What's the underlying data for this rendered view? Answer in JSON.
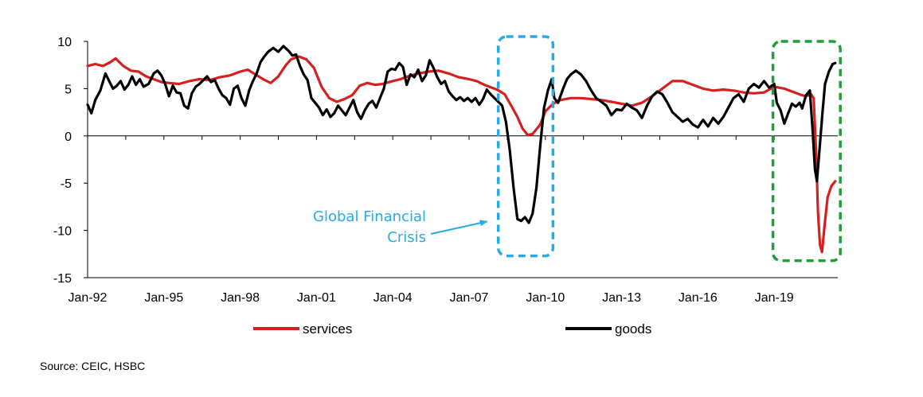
{
  "chart_data": {
    "type": "line",
    "title": "",
    "xlabel": "",
    "ylabel": "",
    "ylim": [
      -15,
      10
    ],
    "yticks": [
      10,
      5,
      0,
      -5,
      -10,
      -15
    ],
    "xrange": [
      1992.0,
      2021.5
    ],
    "xticks": [
      {
        "value": 1992,
        "label": "Jan-92"
      },
      {
        "value": 1995,
        "label": "Jan-95"
      },
      {
        "value": 1998,
        "label": "Jan-98"
      },
      {
        "value": 2001,
        "label": "Jan-01"
      },
      {
        "value": 2004,
        "label": "Jan-04"
      },
      {
        "value": 2007,
        "label": "Jan-07"
      },
      {
        "value": 2010,
        "label": "Jan-10"
      },
      {
        "value": 2013,
        "label": "Jan-13"
      },
      {
        "value": 2016,
        "label": "Jan-16"
      },
      {
        "value": 2019,
        "label": "Jan-19"
      }
    ],
    "series": [
      {
        "name": "services",
        "color": "#d62020",
        "points": [
          [
            1992.0,
            7.4
          ],
          [
            1992.3,
            7.6
          ],
          [
            1992.6,
            7.4
          ],
          [
            1992.9,
            7.8
          ],
          [
            1993.1,
            8.2
          ],
          [
            1993.4,
            7.4
          ],
          [
            1993.7,
            6.9
          ],
          [
            1994.0,
            6.8
          ],
          [
            1994.3,
            6.3
          ],
          [
            1994.6,
            6.0
          ],
          [
            1994.9,
            5.7
          ],
          [
            1995.2,
            5.6
          ],
          [
            1995.6,
            5.5
          ],
          [
            1996.0,
            5.8
          ],
          [
            1996.4,
            6.0
          ],
          [
            1996.8,
            5.9
          ],
          [
            1997.2,
            6.2
          ],
          [
            1997.6,
            6.4
          ],
          [
            1998.0,
            6.8
          ],
          [
            1998.3,
            7.0
          ],
          [
            1998.6,
            6.5
          ],
          [
            1998.9,
            6.0
          ],
          [
            1999.2,
            5.6
          ],
          [
            1999.5,
            6.3
          ],
          [
            1999.8,
            7.5
          ],
          [
            2000.0,
            8.1
          ],
          [
            2000.3,
            8.4
          ],
          [
            2000.6,
            8.1
          ],
          [
            2000.9,
            7.2
          ],
          [
            2001.2,
            5.2
          ],
          [
            2001.5,
            4.0
          ],
          [
            2001.8,
            3.6
          ],
          [
            2002.1,
            3.9
          ],
          [
            2002.4,
            4.3
          ],
          [
            2002.7,
            5.3
          ],
          [
            2003.0,
            5.6
          ],
          [
            2003.3,
            5.4
          ],
          [
            2003.6,
            5.5
          ],
          [
            2004.0,
            5.8
          ],
          [
            2004.3,
            6.0
          ],
          [
            2004.6,
            6.3
          ],
          [
            2005.0,
            6.6
          ],
          [
            2005.4,
            6.8
          ],
          [
            2005.8,
            6.9
          ],
          [
            2006.2,
            6.6
          ],
          [
            2006.6,
            6.2
          ],
          [
            2007.0,
            6.0
          ],
          [
            2007.3,
            5.8
          ],
          [
            2007.6,
            5.4
          ],
          [
            2007.9,
            5.1
          ],
          [
            2008.1,
            4.9
          ],
          [
            2008.4,
            4.4
          ],
          [
            2008.7,
            3.0
          ],
          [
            2008.9,
            2.0
          ],
          [
            2009.1,
            0.8
          ],
          [
            2009.3,
            0.1
          ],
          [
            2009.5,
            0.2
          ],
          [
            2009.8,
            1.2
          ],
          [
            2010.0,
            2.6
          ],
          [
            2010.3,
            3.4
          ],
          [
            2010.6,
            3.8
          ],
          [
            2011.0,
            4.0
          ],
          [
            2011.4,
            4.0
          ],
          [
            2011.8,
            3.9
          ],
          [
            2012.2,
            3.8
          ],
          [
            2012.6,
            3.6
          ],
          [
            2013.0,
            3.4
          ],
          [
            2013.4,
            3.2
          ],
          [
            2013.8,
            3.5
          ],
          [
            2014.2,
            4.2
          ],
          [
            2014.6,
            5.0
          ],
          [
            2015.0,
            5.8
          ],
          [
            2015.4,
            5.8
          ],
          [
            2015.8,
            5.4
          ],
          [
            2016.2,
            5.0
          ],
          [
            2016.6,
            4.8
          ],
          [
            2017.0,
            4.9
          ],
          [
            2017.4,
            4.8
          ],
          [
            2017.8,
            4.6
          ],
          [
            2018.2,
            4.5
          ],
          [
            2018.6,
            4.6
          ],
          [
            2019.0,
            5.2
          ],
          [
            2019.4,
            5.0
          ],
          [
            2019.8,
            4.6
          ],
          [
            2020.1,
            4.3
          ],
          [
            2020.25,
            4.2
          ],
          [
            2020.45,
            4.4
          ],
          [
            2020.55,
            4.0
          ],
          [
            2020.65,
            -2.0
          ],
          [
            2020.72,
            -8.0
          ],
          [
            2020.8,
            -11.5
          ],
          [
            2020.88,
            -12.3
          ],
          [
            2020.98,
            -9.5
          ],
          [
            2021.1,
            -6.5
          ],
          [
            2021.25,
            -5.3
          ],
          [
            2021.4,
            -4.8
          ]
        ]
      },
      {
        "name": "goods",
        "color": "#000000",
        "points": [
          [
            1992.0,
            3.3
          ],
          [
            1992.15,
            2.4
          ],
          [
            1992.3,
            3.8
          ],
          [
            1992.5,
            4.8
          ],
          [
            1992.7,
            6.6
          ],
          [
            1992.85,
            5.8
          ],
          [
            1993.0,
            5.0
          ],
          [
            1993.15,
            5.3
          ],
          [
            1993.3,
            5.8
          ],
          [
            1993.45,
            4.9
          ],
          [
            1993.6,
            5.4
          ],
          [
            1993.75,
            6.3
          ],
          [
            1993.9,
            5.4
          ],
          [
            1994.05,
            6.0
          ],
          [
            1994.2,
            5.2
          ],
          [
            1994.4,
            5.5
          ],
          [
            1994.6,
            6.6
          ],
          [
            1994.75,
            6.9
          ],
          [
            1994.9,
            6.4
          ],
          [
            1995.05,
            5.5
          ],
          [
            1995.2,
            4.2
          ],
          [
            1995.35,
            5.3
          ],
          [
            1995.5,
            4.6
          ],
          [
            1995.65,
            4.5
          ],
          [
            1995.8,
            3.2
          ],
          [
            1995.95,
            2.9
          ],
          [
            1996.1,
            4.5
          ],
          [
            1996.25,
            5.2
          ],
          [
            1996.4,
            5.5
          ],
          [
            1996.55,
            5.9
          ],
          [
            1996.7,
            6.3
          ],
          [
            1996.85,
            5.7
          ],
          [
            1997.0,
            5.9
          ],
          [
            1997.15,
            5.0
          ],
          [
            1997.3,
            4.3
          ],
          [
            1997.45,
            4.0
          ],
          [
            1997.6,
            3.3
          ],
          [
            1997.75,
            5.0
          ],
          [
            1997.9,
            5.3
          ],
          [
            1998.05,
            4.0
          ],
          [
            1998.2,
            3.2
          ],
          [
            1998.35,
            4.8
          ],
          [
            1998.5,
            5.8
          ],
          [
            1998.65,
            6.6
          ],
          [
            1998.8,
            7.8
          ],
          [
            1998.95,
            8.4
          ],
          [
            1999.1,
            8.9
          ],
          [
            1999.3,
            9.3
          ],
          [
            1999.5,
            8.9
          ],
          [
            1999.7,
            9.5
          ],
          [
            1999.9,
            9.0
          ],
          [
            2000.05,
            8.5
          ],
          [
            2000.2,
            8.6
          ],
          [
            2000.35,
            7.4
          ],
          [
            2000.5,
            6.5
          ],
          [
            2000.65,
            5.9
          ],
          [
            2000.8,
            4.0
          ],
          [
            2000.95,
            3.5
          ],
          [
            2001.1,
            3.0
          ],
          [
            2001.25,
            2.2
          ],
          [
            2001.4,
            2.8
          ],
          [
            2001.55,
            2.0
          ],
          [
            2001.7,
            2.4
          ],
          [
            2001.85,
            3.2
          ],
          [
            2002.0,
            2.7
          ],
          [
            2002.15,
            2.2
          ],
          [
            2002.3,
            3.0
          ],
          [
            2002.45,
            3.8
          ],
          [
            2002.6,
            2.5
          ],
          [
            2002.75,
            1.8
          ],
          [
            2002.9,
            2.7
          ],
          [
            2003.05,
            3.4
          ],
          [
            2003.2,
            3.7
          ],
          [
            2003.35,
            3.0
          ],
          [
            2003.5,
            4.0
          ],
          [
            2003.65,
            5.0
          ],
          [
            2003.8,
            6.8
          ],
          [
            2003.95,
            7.1
          ],
          [
            2004.1,
            7.0
          ],
          [
            2004.25,
            7.7
          ],
          [
            2004.4,
            7.3
          ],
          [
            2004.55,
            5.4
          ],
          [
            2004.7,
            6.5
          ],
          [
            2004.85,
            6.2
          ],
          [
            2005.0,
            7.0
          ],
          [
            2005.15,
            5.8
          ],
          [
            2005.3,
            6.4
          ],
          [
            2005.45,
            8.0
          ],
          [
            2005.6,
            7.2
          ],
          [
            2005.75,
            6.2
          ],
          [
            2005.9,
            5.5
          ],
          [
            2006.05,
            5.8
          ],
          [
            2006.2,
            4.7
          ],
          [
            2006.35,
            4.2
          ],
          [
            2006.5,
            3.8
          ],
          [
            2006.65,
            4.1
          ],
          [
            2006.8,
            3.7
          ],
          [
            2006.95,
            4.0
          ],
          [
            2007.1,
            3.6
          ],
          [
            2007.25,
            4.0
          ],
          [
            2007.4,
            3.3
          ],
          [
            2007.55,
            3.9
          ],
          [
            2007.7,
            4.9
          ],
          [
            2007.85,
            4.4
          ],
          [
            2008.0,
            4.0
          ],
          [
            2008.15,
            3.6
          ],
          [
            2008.3,
            3.2
          ],
          [
            2008.45,
            1.5
          ],
          [
            2008.6,
            -1.5
          ],
          [
            2008.75,
            -5.5
          ],
          [
            2008.9,
            -8.8
          ],
          [
            2009.05,
            -9.0
          ],
          [
            2009.2,
            -8.6
          ],
          [
            2009.35,
            -9.2
          ],
          [
            2009.5,
            -8.2
          ],
          [
            2009.65,
            -5.5
          ],
          [
            2009.8,
            -1.0
          ],
          [
            2009.95,
            3.0
          ],
          [
            2010.1,
            4.8
          ],
          [
            2010.25,
            6.0
          ],
          [
            2010.35,
            4.0
          ],
          [
            2010.5,
            3.5
          ],
          [
            2010.7,
            5.0
          ],
          [
            2010.85,
            6.0
          ],
          [
            2011.0,
            6.5
          ],
          [
            2011.2,
            6.9
          ],
          [
            2011.4,
            6.5
          ],
          [
            2011.6,
            5.8
          ],
          [
            2011.8,
            4.8
          ],
          [
            2012.0,
            4.0
          ],
          [
            2012.2,
            3.6
          ],
          [
            2012.4,
            3.2
          ],
          [
            2012.6,
            2.2
          ],
          [
            2012.8,
            2.8
          ],
          [
            2013.0,
            2.7
          ],
          [
            2013.2,
            3.4
          ],
          [
            2013.4,
            3.0
          ],
          [
            2013.6,
            2.7
          ],
          [
            2013.8,
            1.9
          ],
          [
            2014.0,
            3.2
          ],
          [
            2014.2,
            4.2
          ],
          [
            2014.4,
            4.7
          ],
          [
            2014.6,
            4.4
          ],
          [
            2014.8,
            3.5
          ],
          [
            2015.0,
            2.5
          ],
          [
            2015.2,
            2.0
          ],
          [
            2015.4,
            1.5
          ],
          [
            2015.6,
            1.8
          ],
          [
            2015.8,
            1.2
          ],
          [
            2016.0,
            0.9
          ],
          [
            2016.2,
            1.7
          ],
          [
            2016.4,
            1.0
          ],
          [
            2016.6,
            1.9
          ],
          [
            2016.8,
            1.3
          ],
          [
            2017.0,
            2.0
          ],
          [
            2017.2,
            3.0
          ],
          [
            2017.4,
            4.0
          ],
          [
            2017.6,
            4.4
          ],
          [
            2017.8,
            3.6
          ],
          [
            2018.0,
            5.0
          ],
          [
            2018.2,
            5.5
          ],
          [
            2018.4,
            5.1
          ],
          [
            2018.6,
            5.8
          ],
          [
            2018.8,
            5.1
          ],
          [
            2019.0,
            5.5
          ],
          [
            2019.1,
            3.5
          ],
          [
            2019.25,
            2.7
          ],
          [
            2019.4,
            1.3
          ],
          [
            2019.55,
            2.4
          ],
          [
            2019.7,
            3.4
          ],
          [
            2019.85,
            3.1
          ],
          [
            2020.0,
            3.5
          ],
          [
            2020.1,
            2.9
          ],
          [
            2020.25,
            4.3
          ],
          [
            2020.4,
            4.8
          ],
          [
            2020.5,
            1.0
          ],
          [
            2020.6,
            -3.5
          ],
          [
            2020.68,
            -4.8
          ],
          [
            2020.78,
            -1.5
          ],
          [
            2020.9,
            2.5
          ],
          [
            2021.0,
            5.5
          ],
          [
            2021.15,
            6.8
          ],
          [
            2021.3,
            7.6
          ],
          [
            2021.4,
            7.7
          ]
        ]
      }
    ],
    "highlight_boxes": [
      {
        "name": "global-financial-crisis",
        "x0": 2008.15,
        "x1": 2010.3,
        "y0": -12.7,
        "y1": 10.5,
        "color": "#29abe2"
      },
      {
        "name": "covid-shock",
        "x0": 2018.95,
        "x1": 2021.6,
        "y0": -13.2,
        "y1": 10.0,
        "color": "#1f9e3a"
      }
    ],
    "annotations": [
      {
        "text_lines": [
          "Global Financial",
          "Crisis"
        ],
        "color": "#29abe2",
        "arrow_to": [
          2008.15,
          -8.8
        ]
      }
    ],
    "legend": [
      {
        "label": "services",
        "color": "#d62020"
      },
      {
        "label": "goods",
        "color": "#000000"
      }
    ],
    "legend_position": "bottom"
  },
  "source_note": "Source: CEIC, HSBC"
}
